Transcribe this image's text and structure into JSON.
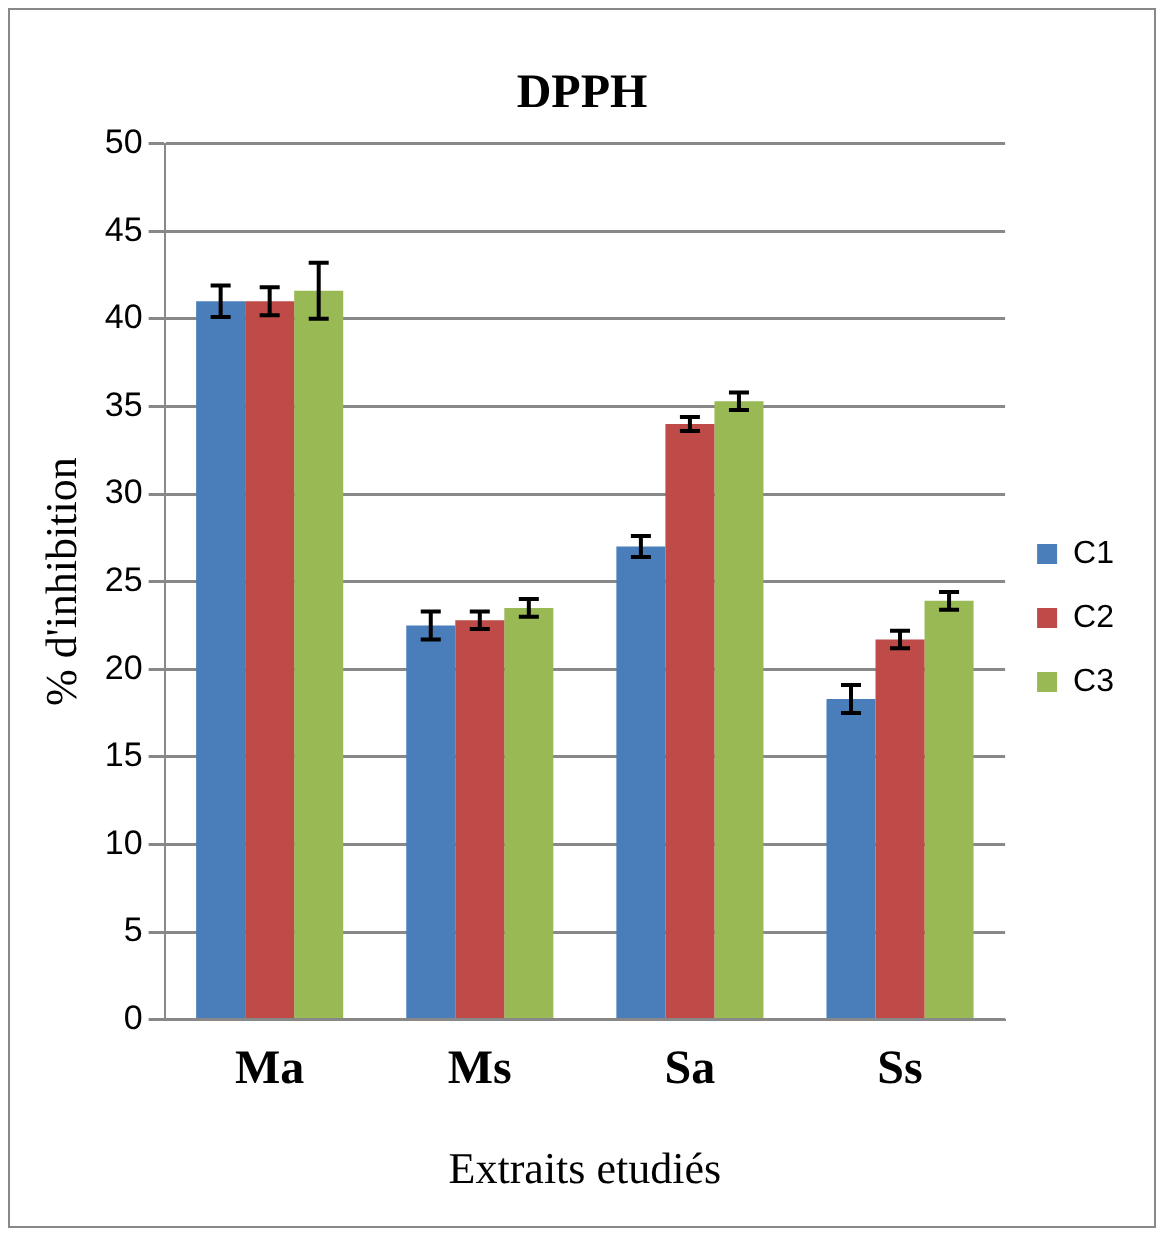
{
  "chart_data": {
    "type": "bar",
    "title": "DPPH",
    "xlabel": "Extraits etudiés",
    "ylabel": "% d'inhibition",
    "categories": [
      "Ma",
      "Ms",
      "Sa",
      "Ss"
    ],
    "series": [
      {
        "name": "C1",
        "color": "#4a7ebb",
        "values": [
          41.0,
          22.5,
          27.0,
          18.3
        ],
        "errors": [
          0.9,
          0.8,
          0.6,
          0.8
        ]
      },
      {
        "name": "C2",
        "color": "#be4b48",
        "values": [
          41.0,
          22.8,
          34.0,
          21.7
        ],
        "errors": [
          0.8,
          0.5,
          0.4,
          0.5
        ]
      },
      {
        "name": "C3",
        "color": "#98b954",
        "values": [
          41.6,
          23.5,
          35.3,
          23.9
        ],
        "errors": [
          1.6,
          0.5,
          0.5,
          0.5
        ]
      }
    ],
    "ylim": [
      0,
      50
    ],
    "yticks": [
      0,
      5,
      10,
      15,
      20,
      25,
      30,
      35,
      40,
      45,
      50
    ],
    "grid": "y",
    "legend": "right"
  }
}
